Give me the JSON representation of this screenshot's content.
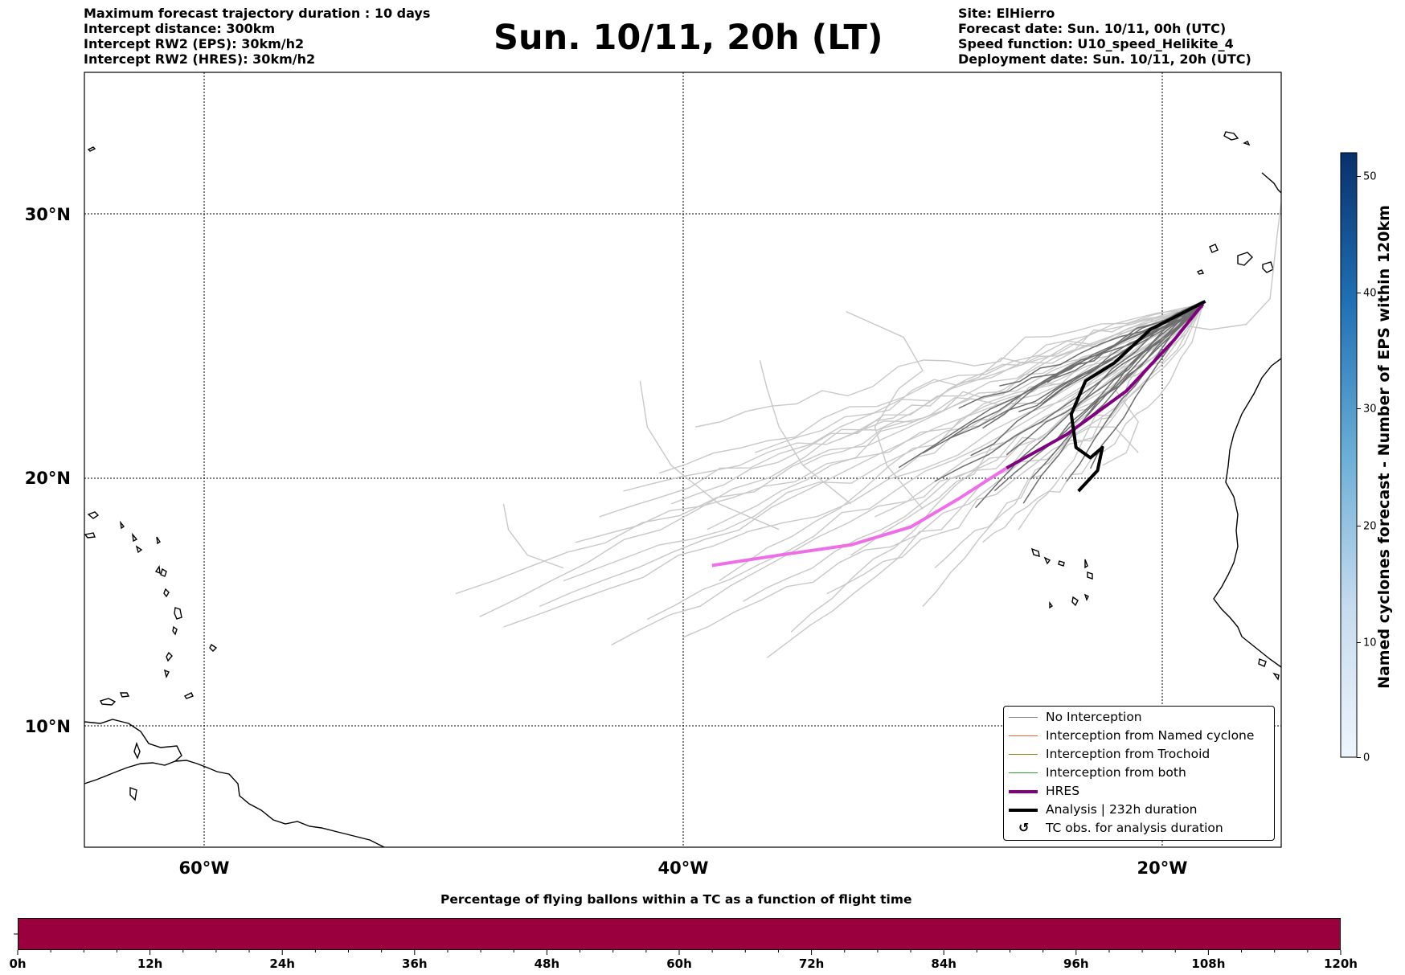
{
  "header_left": [
    "Maximum forecast trajectory duration : 10 days",
    "Intercept distance: 300km",
    "Intercept RW2 (EPS):  30km/h2",
    "Intercept RW2 (HRES): 30km/h2"
  ],
  "title": "Sun. 10/11, 20h (LT)",
  "header_right": [
    "Site: ElHierro",
    "Forecast date: Sun. 10/11, 00h (UTC)",
    "Speed function: U10_speed_Helikite_4",
    "Deployment date: Sun. 10/11, 20h (UTC)"
  ],
  "map": {
    "lat_labels": [
      "30°N",
      "20°N",
      "10°N"
    ],
    "lon_labels": [
      "60°W",
      "40°W",
      "20°W"
    ],
    "gridlines": true
  },
  "legend": [
    {
      "label": "No Interception",
      "color": "#888888",
      "style": "thin"
    },
    {
      "label": "Interception from Named cyclone",
      "color": "#e8612c",
      "style": "thin"
    },
    {
      "label": "Interception from Trochoid",
      "color": "#8a8a1e",
      "style": "thin"
    },
    {
      "label": "Interception from both",
      "color": "#2ca02c",
      "style": "thin"
    },
    {
      "label": "HRES",
      "color": "#800080",
      "style": "thick"
    },
    {
      "label": "Analysis | 232h duration",
      "color": "#000000",
      "style": "thick"
    },
    {
      "label": "TC obs. for analysis duration",
      "color": "#000000",
      "style": "icon",
      "icon": "cyclone-symbol-icon"
    }
  ],
  "colorbar": {
    "label": "Named cyclones forecast - Number of EPS within 120km",
    "ticks": [
      "0",
      "10",
      "20",
      "30",
      "40",
      "50"
    ],
    "colors": [
      "#e8f1fa",
      "#08306b"
    ]
  },
  "flight_bar": {
    "title": "Percentage of flying ballons within a TC as a function of flight time",
    "ticks": [
      "0h",
      "12h",
      "24h",
      "36h",
      "48h",
      "60h",
      "72h",
      "84h",
      "96h",
      "108h",
      "120h"
    ],
    "fill_color": "#99003d",
    "fill_fraction": 1.0
  },
  "chart_data": {
    "type": "line",
    "title": "Sun. 10/11, 20h (LT)",
    "xlim": [
      -65,
      -15
    ],
    "ylim": [
      5,
      33
    ],
    "series": [
      {
        "name": "HRES",
        "points": [
          [
            -38.8,
            16.6
          ],
          [
            -36,
            17.0
          ],
          [
            -33,
            17.4
          ],
          [
            -30.5,
            18.1
          ],
          [
            -28.5,
            19.2
          ],
          [
            -26.5,
            20.4
          ],
          [
            -24,
            21.7
          ],
          [
            -21.5,
            23.4
          ],
          [
            -19.5,
            25.4
          ],
          [
            -18.3,
            26.8
          ]
        ]
      },
      {
        "name": "Analysis | 232h duration",
        "points": [
          [
            -23.5,
            19.5
          ],
          [
            -22.7,
            20.3
          ],
          [
            -22.5,
            21.2
          ],
          [
            -23.0,
            20.8
          ],
          [
            -23.6,
            21.2
          ],
          [
            -23.8,
            22.5
          ],
          [
            -23.2,
            23.8
          ],
          [
            -22.0,
            24.5
          ],
          [
            -20.5,
            25.8
          ],
          [
            -18.2,
            26.9
          ]
        ]
      }
    ]
  }
}
